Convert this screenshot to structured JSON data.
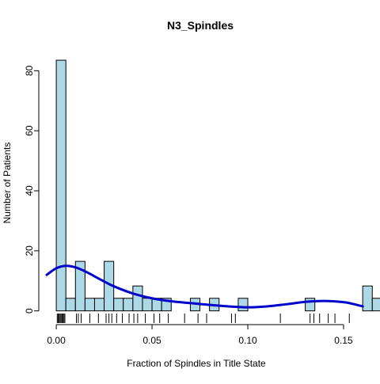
{
  "chart_data": {
    "type": "histogram",
    "title": "N3_Spindles",
    "xlabel": "Fraction of Spindles in Title State",
    "ylabel": "Number of Patients",
    "xlim": [
      -0.005,
      0.162
    ],
    "ylim": [
      -2.2,
      88
    ],
    "x_ticks": [
      {
        "value": 0.0,
        "label": "0.00"
      },
      {
        "value": 0.05,
        "label": "0.05"
      },
      {
        "value": 0.1,
        "label": "0.10"
      },
      {
        "value": 0.15,
        "label": "0.15"
      }
    ],
    "y_ticks": [
      {
        "value": 0,
        "label": "0"
      },
      {
        "value": 20,
        "label": "20"
      },
      {
        "value": 40,
        "label": "40"
      },
      {
        "value": 60,
        "label": "60"
      },
      {
        "value": 80,
        "label": "80"
      }
    ],
    "bin_width": 0.005,
    "bin_start": 0.0,
    "counts": [
      83.5,
      4.2,
      16.5,
      4.2,
      4.2,
      16.5,
      4.2,
      4.2,
      8.3,
      4.2,
      4.2,
      4.2,
      0,
      0,
      4.2,
      0,
      4.2,
      0,
      0,
      4.2,
      0,
      0,
      0,
      0,
      0,
      0,
      4.2,
      0,
      0,
      0,
      0,
      0,
      8.3,
      4.2,
      4.2,
      4.2,
      4.2,
      4.2
    ],
    "density_curve": {
      "x": [
        -0.005,
        0.0,
        0.005,
        0.01,
        0.015,
        0.02,
        0.025,
        0.03,
        0.04,
        0.05,
        0.06,
        0.07,
        0.08,
        0.09,
        0.1,
        0.11,
        0.12,
        0.13,
        0.14,
        0.15,
        0.155,
        0.16
      ],
      "y": [
        12.0,
        14.2,
        15.0,
        14.5,
        13.2,
        11.5,
        9.8,
        8.2,
        5.8,
        4.2,
        3.2,
        2.6,
        2.0,
        1.5,
        1.2,
        1.5,
        2.2,
        3.0,
        3.3,
        2.9,
        2.3,
        1.5
      ]
    },
    "rug": [
      0.0005,
      0.001,
      0.0015,
      0.002,
      0.0025,
      0.003,
      0.0035,
      0.004,
      0.0045,
      0.0105,
      0.0115,
      0.013,
      0.0175,
      0.022,
      0.026,
      0.0275,
      0.029,
      0.0315,
      0.0345,
      0.038,
      0.0405,
      0.0425,
      0.0465,
      0.051,
      0.054,
      0.0585,
      0.067,
      0.074,
      0.0785,
      0.0915,
      0.0935,
      0.117,
      0.1325,
      0.1345,
      0.1375,
      0.142,
      0.1455,
      0.153
    ],
    "colors": {
      "bar_fill": "#add8e6",
      "bar_stroke": "#000000",
      "curve": "#0000cd"
    },
    "grid": false
  }
}
